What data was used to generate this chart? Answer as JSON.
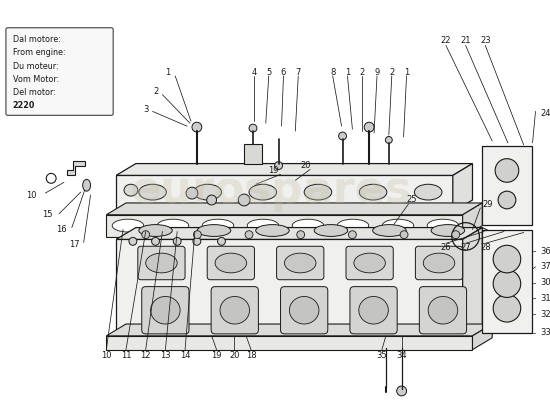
{
  "bg_color": "#ffffff",
  "line_color": "#1a1a1a",
  "fill_light": "#f0f0ee",
  "fill_gasket": "#e8e8e4",
  "fill_white": "#ffffff",
  "watermark_text": "eurospares",
  "watermark_color": "#c8bfa8",
  "legend_lines": [
    "Dal motore:",
    "From engine:",
    "Du moteur:",
    "Vom Motor:",
    "Del motor:",
    "2220"
  ],
  "label_fs": 6.0
}
